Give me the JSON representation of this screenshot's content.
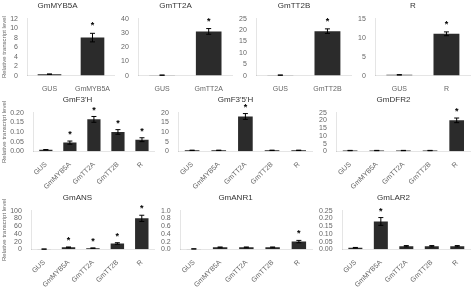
{
  "chart_data": [
    {
      "type": "bar",
      "title": "GmMYB5A",
      "ylabel": "Relative transcript level",
      "categories": [
        "GUS",
        "GmMYB5A"
      ],
      "values": [
        0.3,
        8.0
      ],
      "errors": [
        0.05,
        0.9
      ],
      "color": "#2b2b2b",
      "ylim": [
        0,
        12
      ],
      "yticks": [
        0,
        2,
        4,
        6,
        8,
        10,
        12
      ],
      "grid": false,
      "annotations": [
        {
          "text": "*",
          "category": "GmMYB5A"
        }
      ]
    },
    {
      "type": "bar",
      "title": "GmTT2A",
      "categories": [
        "GUS",
        "GmTT2A"
      ],
      "values": [
        0.3,
        31.0
      ],
      "errors": [
        0.05,
        2.0
      ],
      "color": "#2b2b2b",
      "ylim": [
        0,
        40
      ],
      "yticks": [
        0,
        10,
        20,
        30,
        40
      ],
      "grid": false,
      "annotations": [
        {
          "text": "*",
          "category": "GmTT2A"
        }
      ]
    },
    {
      "type": "bar",
      "title": "GmTT2B",
      "categories": [
        "GUS",
        "GmTT2B"
      ],
      "values": [
        0.2,
        19.5
      ],
      "errors": [
        0.05,
        1.0
      ],
      "color": "#2b2b2b",
      "ylim": [
        0,
        25
      ],
      "yticks": [
        0,
        5,
        10,
        15,
        20,
        25
      ],
      "grid": false,
      "annotations": [
        {
          "text": "*",
          "category": "GmTT2B"
        }
      ]
    },
    {
      "type": "bar",
      "title": "R",
      "categories": [
        "GUS",
        "R"
      ],
      "values": [
        0.2,
        11.0
      ],
      "errors": [
        0.05,
        0.5
      ],
      "color": "#2b2b2b",
      "ylim": [
        0,
        15
      ],
      "yticks": [
        0,
        5,
        10,
        15
      ],
      "grid": false,
      "annotations": [
        {
          "text": "*",
          "category": "R"
        }
      ]
    },
    {
      "type": "bar",
      "title": "GmF3'H",
      "ylabel": "Relative transcript level",
      "categories": [
        "GUS",
        "GmMYB5A",
        "GmTT2A",
        "GmTT2B",
        "R"
      ],
      "values": [
        0.008,
        0.045,
        0.165,
        0.1,
        0.06
      ],
      "errors": [
        0.001,
        0.008,
        0.015,
        0.012,
        0.01
      ],
      "color": "#2b2b2b",
      "ylim": [
        0,
        0.2
      ],
      "yticks": [
        {
          "value": 0,
          "label": "0.00"
        },
        0.05,
        {
          "value": 0.1,
          "label": "0.10"
        },
        0.15,
        {
          "value": 0.2,
          "label": "0.20"
        }
      ],
      "grid": false,
      "annotations": [
        {
          "text": "*",
          "category": "GmMYB5A"
        },
        {
          "text": "*",
          "category": "GmTT2A"
        },
        {
          "text": "*",
          "category": "GmTT2B"
        },
        {
          "text": "*",
          "category": "R"
        }
      ]
    },
    {
      "type": "bar",
      "title": "GmF3'5'H",
      "categories": [
        "GUS",
        "GmMYB5A",
        "GmTT2A",
        "GmTT2B",
        "R"
      ],
      "values": [
        0.5,
        0.5,
        18.0,
        0.5,
        0.5
      ],
      "errors": [
        0.1,
        0.1,
        1.5,
        0.1,
        0.1
      ],
      "color": "#2b2b2b",
      "ylim": [
        0,
        20
      ],
      "yticks": [
        0,
        5,
        10,
        15,
        20
      ],
      "grid": false,
      "annotations": [
        {
          "text": "*",
          "category": "GmTT2A"
        }
      ]
    },
    {
      "type": "bar",
      "title": "GmDFR2",
      "categories": [
        "GUS",
        "GmMYB5A",
        "GmTT2A",
        "GmTT2B",
        "R"
      ],
      "values": [
        0.5,
        0.5,
        0.5,
        0.5,
        20.0
      ],
      "errors": [
        0.1,
        0.1,
        0.1,
        0.1,
        1.5
      ],
      "color": "#2b2b2b",
      "ylim": [
        0,
        25
      ],
      "yticks": [
        0,
        5,
        10,
        15,
        20,
        25
      ],
      "grid": false,
      "annotations": [
        {
          "text": "*",
          "category": "R"
        }
      ]
    },
    {
      "type": "bar",
      "title": "GmANS",
      "ylabel": "Relative transcript level",
      "categories": [
        "GUS",
        "GmMYB5A",
        "GmTT2A",
        "GmTT2B",
        "R"
      ],
      "values": [
        0.5,
        5.0,
        3.0,
        15.0,
        80.0
      ],
      "errors": [
        0.1,
        1.0,
        0.5,
        2.0,
        8.0
      ],
      "color": "#2b2b2b",
      "ylim": [
        0,
        100
      ],
      "yticks": [
        0,
        20,
        40,
        60,
        80,
        100
      ],
      "grid": false,
      "annotations": [
        {
          "text": "*",
          "category": "GmMYB5A"
        },
        {
          "text": "*",
          "category": "GmTT2A"
        },
        {
          "text": "*",
          "category": "GmTT2B"
        },
        {
          "text": "*",
          "category": "R"
        }
      ]
    },
    {
      "type": "bar",
      "title": "GmANR1",
      "categories": [
        "GUS",
        "GmMYB5A",
        "GmTT2A",
        "GmTT2B",
        "R"
      ],
      "values": [
        0.01,
        0.05,
        0.05,
        0.05,
        0.2
      ],
      "errors": [
        0.002,
        0.01,
        0.01,
        0.01,
        0.03
      ],
      "color": "#2b2b2b",
      "ylim": [
        0,
        1.0
      ],
      "yticks": [
        {
          "value": 0,
          "label": "0.0"
        },
        0.2,
        0.4,
        0.6,
        0.8,
        {
          "value": 1.0,
          "label": "1.0"
        }
      ],
      "grid": false,
      "annotations": [
        {
          "text": "*",
          "category": "R"
        }
      ]
    },
    {
      "type": "bar",
      "title": "GmLAR2",
      "categories": [
        "GUS",
        "GmMYB5A",
        "GmTT2A",
        "GmTT2B",
        "R"
      ],
      "values": [
        0.01,
        0.18,
        0.02,
        0.02,
        0.02
      ],
      "errors": [
        0.002,
        0.025,
        0.004,
        0.004,
        0.004
      ],
      "color": "#2b2b2b",
      "ylim": [
        0,
        0.25
      ],
      "yticks": [
        {
          "value": 0,
          "label": "0.00"
        },
        0.05,
        {
          "value": 0.1,
          "label": "0.10"
        },
        0.15,
        {
          "value": 0.2,
          "label": "0.20"
        },
        0.25
      ],
      "grid": false,
      "annotations": [
        {
          "text": "*",
          "category": "GmMYB5A"
        }
      ]
    }
  ]
}
